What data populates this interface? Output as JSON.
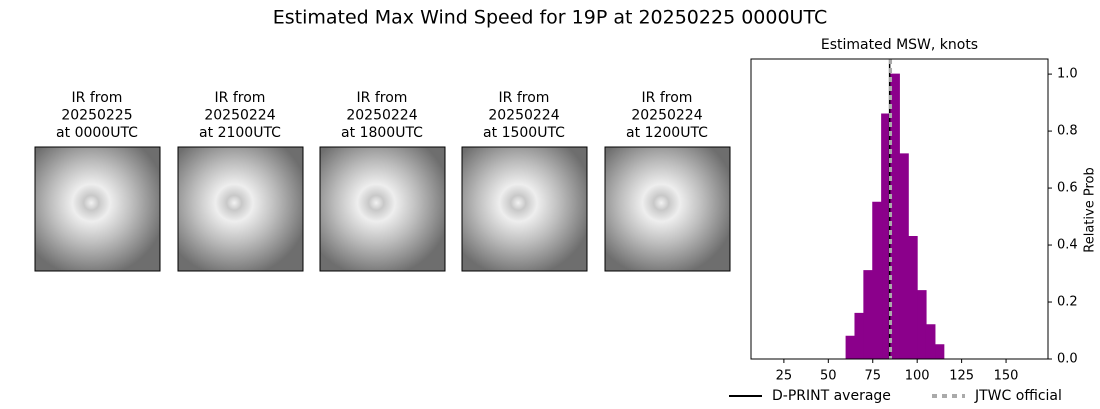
{
  "title": "Estimated Max Wind Speed for 19P at 20250225 0000UTC",
  "panels": [
    {
      "lines": [
        "IR from",
        "20250225",
        "at 0000UTC"
      ]
    },
    {
      "lines": [
        "IR from",
        "20250224",
        "at 2100UTC"
      ]
    },
    {
      "lines": [
        "IR from",
        "20250224",
        "at 1800UTC"
      ]
    },
    {
      "lines": [
        "IR from",
        "20250224",
        "at 1500UTC"
      ]
    },
    {
      "lines": [
        "IR from",
        "20250224",
        "at 1200UTC"
      ]
    }
  ],
  "chart_data": {
    "type": "histogram",
    "title": "Estimated MSW, knots",
    "ylabel": "Relative Prob",
    "bins": [
      15,
      20,
      25,
      30,
      35,
      40,
      45,
      50,
      55,
      60,
      65,
      70,
      75,
      80,
      85,
      90,
      95,
      100,
      105,
      110,
      115,
      120,
      125,
      130,
      135,
      140,
      145,
      150,
      155,
      160,
      165,
      170
    ],
    "values": [
      0,
      0,
      0,
      0,
      0,
      0,
      0,
      0,
      0,
      0.08,
      0.16,
      0.31,
      0.55,
      0.86,
      1.0,
      0.72,
      0.43,
      0.24,
      0.12,
      0.05,
      0,
      0,
      0,
      0,
      0,
      0,
      0,
      0,
      0,
      0,
      0
    ],
    "color": "#8b008b",
    "xlim": [
      6.5,
      173.6
    ],
    "xticks": [
      25,
      50,
      75,
      100,
      125,
      150
    ],
    "ylim": [
      0,
      1.053
    ],
    "yticks": [
      {
        "value": 0,
        "label": "0.0"
      },
      0.2,
      0.4,
      0.6,
      0.8,
      {
        "value": 1,
        "label": "1.0"
      }
    ],
    "reference_lines": [
      {
        "name": "D-PRINT average",
        "value": 84.5,
        "color": "#000000",
        "style": "solid"
      },
      {
        "name": "JTWC official",
        "value": 85,
        "color": "#aaaaaa",
        "style": "dashed"
      }
    ]
  }
}
